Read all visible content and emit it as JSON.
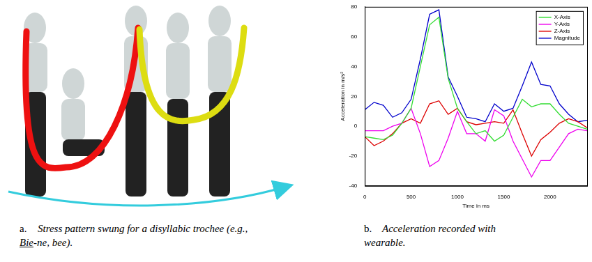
{
  "captions": [
    {
      "label": "a.",
      "parts": [
        {
          "text": "Stress pattern swung for a disyllabic trochee (e.g., "
        },
        {
          "text": "Bie",
          "underline": true
        },
        {
          "text": "-ne, bee)."
        }
      ]
    },
    {
      "label": "b.",
      "parts": [
        {
          "text": "Acceleration recorded with wearable."
        }
      ]
    }
  ],
  "chart_data": {
    "type": "line",
    "xlabel": "Time in ms",
    "ylabel": "Acceleration in m/s²",
    "x": [
      0,
      100,
      200,
      300,
      400,
      500,
      600,
      700,
      800,
      900,
      1000,
      1100,
      1200,
      1300,
      1400,
      1500,
      1600,
      1700,
      1800,
      1900,
      2000,
      2100,
      2200,
      2300,
      2400
    ],
    "series": [
      {
        "name": "X-Axis",
        "color": "#33dd33",
        "values": [
          -7,
          -8,
          -9,
          -6,
          2,
          12,
          40,
          68,
          73,
          32,
          12,
          3,
          -5,
          -3,
          -10,
          -6,
          6,
          18,
          13,
          15,
          15,
          8,
          2,
          0,
          -2
        ]
      },
      {
        "name": "Y-Axis",
        "color": "#ee00ee",
        "values": [
          -3,
          -3,
          -3,
          0,
          2,
          12,
          -5,
          -27,
          -23,
          -8,
          10,
          -5,
          -5,
          -10,
          11,
          7,
          -10,
          -22,
          -34,
          -23,
          -23,
          -14,
          -5,
          -2,
          -3
        ]
      },
      {
        "name": "Z-Axis",
        "color": "#dd0000",
        "values": [
          -7,
          -13,
          -10,
          -5,
          2,
          5,
          2,
          15,
          17,
          8,
          12,
          3,
          1,
          2,
          3,
          2,
          11,
          -5,
          -20,
          -9,
          -4,
          2,
          5,
          3,
          -1
        ]
      },
      {
        "name": "Magnitude",
        "color": "#0000cc",
        "values": [
          11,
          16,
          14,
          6,
          9,
          18,
          45,
          75,
          78,
          33,
          20,
          6,
          5,
          3,
          15,
          10,
          12,
          27,
          43,
          28,
          27,
          15,
          8,
          3,
          4
        ]
      }
    ],
    "xlim": [
      0,
      2400
    ],
    "xticks": [
      0,
      500,
      1000,
      1500,
      2000
    ],
    "ylim": [
      -40,
      80
    ],
    "yticks": [
      -40,
      -20,
      0,
      20,
      40,
      60,
      80
    ],
    "grid": false,
    "legend": "northeast"
  }
}
